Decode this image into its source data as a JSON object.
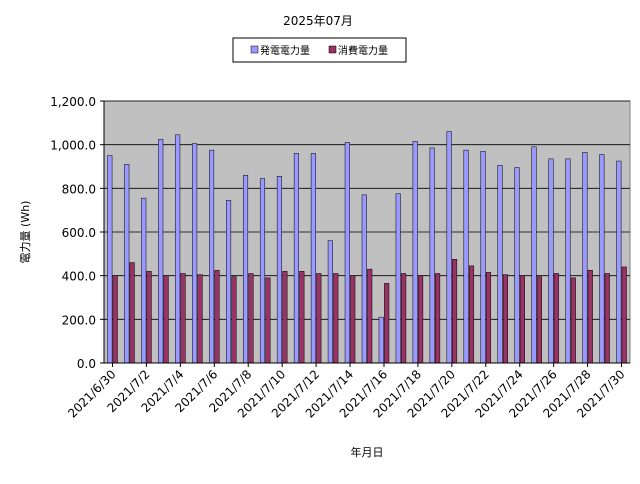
{
  "chart_data": {
    "type": "bar",
    "title": "2025年07月",
    "xlabel": "年月日",
    "ylabel": "電力量 (Wh)",
    "ylim": [
      0,
      1200
    ],
    "ytick_step": 200,
    "ytick_labels": [
      "0.0",
      "200.0",
      "400.0",
      "600.0",
      "800.0",
      "1,000.0",
      "1,200.0"
    ],
    "grid": true,
    "legend_position": "top-center",
    "categories": [
      "2021/6/30",
      "2021/7/1",
      "2021/7/2",
      "2021/7/3",
      "2021/7/4",
      "2021/7/5",
      "2021/7/6",
      "2021/7/7",
      "2021/7/8",
      "2021/7/9",
      "2021/7/10",
      "2021/7/11",
      "2021/7/12",
      "2021/7/13",
      "2021/7/14",
      "2021/7/15",
      "2021/7/16",
      "2021/7/17",
      "2021/7/18",
      "2021/7/19",
      "2021/7/20",
      "2021/7/21",
      "2021/7/22",
      "2021/7/23",
      "2021/7/24",
      "2021/7/25",
      "2021/7/26",
      "2021/7/27",
      "2021/7/28",
      "2021/7/29",
      "2021/7/30"
    ],
    "xtick_labels": [
      "2021/6/30",
      "2021/7/2",
      "2021/7/4",
      "2021/7/6",
      "2021/7/8",
      "2021/7/10",
      "2021/7/12",
      "2021/7/14",
      "2021/7/16",
      "2021/7/18",
      "2021/7/20",
      "2021/7/22",
      "2021/7/24",
      "2021/7/26",
      "2021/7/28",
      "2021/7/30"
    ],
    "series": [
      {
        "name": "発電電力量",
        "color": "#9999ff",
        "values": [
          950,
          910,
          755,
          1025,
          1045,
          1005,
          975,
          745,
          860,
          845,
          855,
          960,
          960,
          560,
          1010,
          770,
          210,
          775,
          1015,
          985,
          1060,
          975,
          970,
          905,
          895,
          990,
          935,
          935,
          965,
          955,
          925
        ]
      },
      {
        "name": "消費電力量",
        "color": "#993366",
        "values": [
          400,
          460,
          420,
          400,
          410,
          405,
          425,
          395,
          410,
          390,
          420,
          420,
          410,
          410,
          400,
          430,
          365,
          410,
          400,
          410,
          475,
          445,
          415,
          405,
          400,
          395,
          410,
          390,
          425,
          410,
          440
        ]
      }
    ],
    "colors": {
      "plot_background": "#c0c0c0",
      "gridline": "#000000",
      "border": "#808080"
    }
  }
}
